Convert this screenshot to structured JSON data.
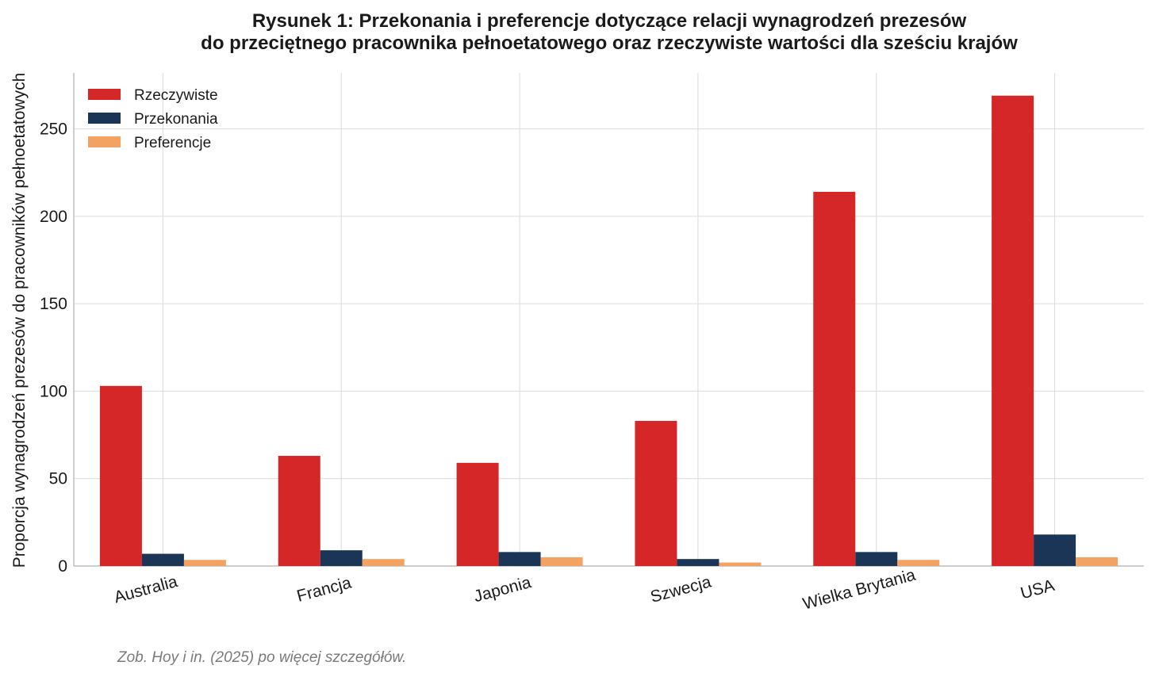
{
  "chart_data": {
    "type": "bar",
    "title_line1": "Rysunek 1: Przekonania i preferencje dotyczące relacji wynagrodzeń prezesów",
    "title_line2": "do przeciętnego pracownika pełnoetatowego oraz rzeczywiste wartości dla sześciu krajów",
    "xlabel": "",
    "ylabel": "Proporcja wynagrodzeń prezesów do pracowników pełnoetatowych",
    "categories": [
      "Australia",
      "Francja",
      "Japonia",
      "Szwecja",
      "Wielka Brytania",
      "USA"
    ],
    "series": [
      {
        "name": "Rzeczywiste",
        "color": "#d62728",
        "values": [
          103,
          63,
          59,
          83,
          214,
          269
        ]
      },
      {
        "name": "Przekonania",
        "color": "#1b3557",
        "values": [
          7,
          9,
          8,
          4,
          8,
          18
        ]
      },
      {
        "name": "Preferencje",
        "color": "#f4a261",
        "values": [
          3.5,
          4,
          5,
          2,
          3.5,
          5
        ]
      }
    ],
    "ylim": [
      0,
      282
    ],
    "yticks": [
      "0",
      "50",
      "100",
      "150",
      "200",
      "250"
    ],
    "ytick_values": [
      0,
      50,
      100,
      150,
      200,
      250
    ],
    "grid": true,
    "legend_position": "top-left",
    "note": "Zob. Hoy i in. (2025) po więcej szczegółów."
  }
}
